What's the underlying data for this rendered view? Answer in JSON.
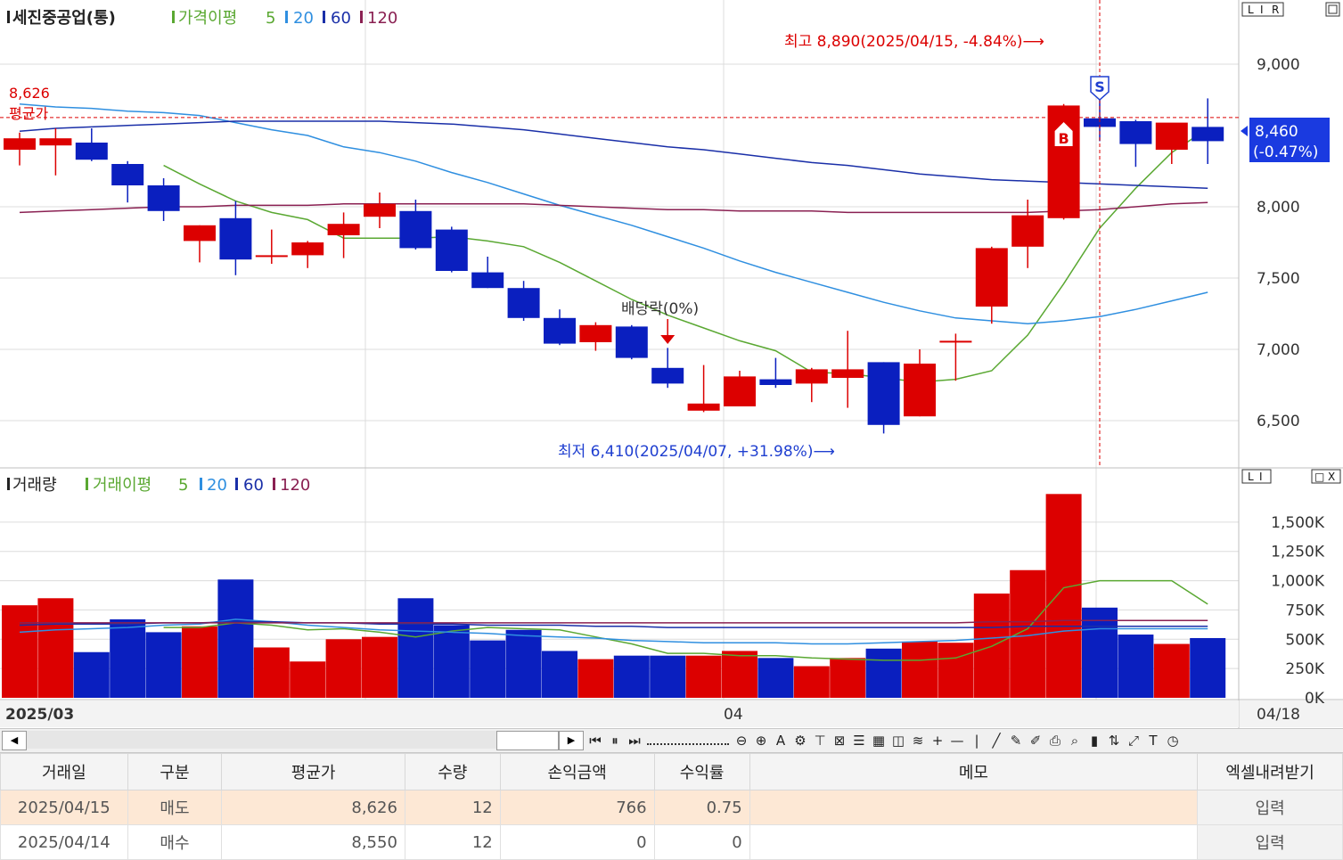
{
  "header": {
    "stock": "세진중공업(통)",
    "price_ma_label": "가격이평",
    "ma_periods": [
      "5",
      "20",
      "60",
      "120"
    ]
  },
  "volume_header": {
    "title": "거래량",
    "ma_label": "거래이평",
    "ma_periods": [
      "5",
      "20",
      "60",
      "120"
    ]
  },
  "panel_buttons": {
    "top": [
      "L",
      "I",
      "R"
    ],
    "bottom": [
      "L",
      "I"
    ],
    "win": [
      "□",
      "X"
    ]
  },
  "annotations": {
    "high": "최고 8,890(2025/04/15, -4.84%)⟶",
    "low": "최저 6,410(2025/04/07, +31.98%)⟶",
    "ex_dividend": "배당락(0%)",
    "avg_price_value": "8,626",
    "avg_price_label": "평균가",
    "buy_marker": "B",
    "sell_marker": "S",
    "current_price": "8,460",
    "current_change": "(-0.47%)"
  },
  "x_axis": {
    "left": "2025/03",
    "mid": "04",
    "right": "04/18"
  },
  "chart_data": [
    {
      "type": "candlestick",
      "ylim": [
        6200,
        9400
      ],
      "y_ticks": [
        6500,
        7000,
        7500,
        8000,
        9000
      ],
      "y_tick_labels": [
        "6,500",
        "7,000",
        "7,500",
        "8,000",
        "9,000"
      ],
      "candles": [
        {
          "o": 8400,
          "h": 8520,
          "l": 8290,
          "c": 8480
        },
        {
          "o": 8430,
          "h": 8550,
          "l": 8220,
          "c": 8480
        },
        {
          "o": 8450,
          "h": 8550,
          "l": 8320,
          "c": 8330
        },
        {
          "o": 8300,
          "h": 8320,
          "l": 8030,
          "c": 8150
        },
        {
          "o": 8150,
          "h": 8200,
          "l": 7900,
          "c": 7970
        },
        {
          "o": 7760,
          "h": 7870,
          "l": 7610,
          "c": 7870
        },
        {
          "o": 7920,
          "h": 8040,
          "l": 7520,
          "c": 7630
        },
        {
          "o": 7660,
          "h": 7840,
          "l": 7600,
          "c": 7660
        },
        {
          "o": 7660,
          "h": 7760,
          "l": 7570,
          "c": 7750
        },
        {
          "o": 7800,
          "h": 7960,
          "l": 7640,
          "c": 7880
        },
        {
          "o": 7930,
          "h": 8100,
          "l": 7850,
          "c": 8020
        },
        {
          "o": 7970,
          "h": 8050,
          "l": 7700,
          "c": 7710
        },
        {
          "o": 7840,
          "h": 7860,
          "l": 7540,
          "c": 7550
        },
        {
          "o": 7540,
          "h": 7650,
          "l": 7430,
          "c": 7430
        },
        {
          "o": 7430,
          "h": 7480,
          "l": 7200,
          "c": 7220
        },
        {
          "o": 7220,
          "h": 7280,
          "l": 7030,
          "c": 7040
        },
        {
          "o": 7050,
          "h": 7190,
          "l": 6990,
          "c": 7170
        },
        {
          "o": 7160,
          "h": 7170,
          "l": 6930,
          "c": 6940
        },
        {
          "o": 6870,
          "h": 7010,
          "l": 6730,
          "c": 6760
        },
        {
          "o": 6570,
          "h": 6890,
          "l": 6560,
          "c": 6620
        },
        {
          "o": 6600,
          "h": 6850,
          "l": 6600,
          "c": 6810
        },
        {
          "o": 6790,
          "h": 6940,
          "l": 6730,
          "c": 6750
        },
        {
          "o": 6760,
          "h": 6870,
          "l": 6630,
          "c": 6860
        },
        {
          "o": 6800,
          "h": 7130,
          "l": 6590,
          "c": 6860
        },
        {
          "o": 6910,
          "h": 6910,
          "l": 6410,
          "c": 6470
        },
        {
          "o": 6530,
          "h": 7000,
          "l": 6530,
          "c": 6900
        },
        {
          "o": 7060,
          "h": 7110,
          "l": 6780,
          "c": 7060
        },
        {
          "o": 7300,
          "h": 7720,
          "l": 7180,
          "c": 7710
        },
        {
          "o": 7720,
          "h": 8050,
          "l": 7570,
          "c": 7940
        },
        {
          "o": 7920,
          "h": 8720,
          "l": 7910,
          "c": 8710
        },
        {
          "o": 8620,
          "h": 8890,
          "l": 8460,
          "c": 8560
        },
        {
          "o": 8600,
          "h": 8610,
          "l": 8280,
          "c": 8440
        },
        {
          "o": 8400,
          "h": 8580,
          "l": 8300,
          "c": 8590
        },
        {
          "o": 8560,
          "h": 8760,
          "l": 8300,
          "c": 8460
        }
      ],
      "ma_series": [
        {
          "name": "5",
          "color": "#5aa832",
          "values": [
            null,
            null,
            null,
            null,
            8290,
            8160,
            8040,
            7960,
            7910,
            7780,
            7780,
            7780,
            7790,
            7760,
            7720,
            7610,
            7480,
            7350,
            7240,
            7150,
            7060,
            6990,
            6840,
            6830,
            6800,
            6770,
            6790,
            6850,
            7100,
            7460,
            7850,
            8130,
            8380,
            8550
          ]
        },
        {
          "name": "20",
          "color": "#2f8fe0",
          "values": [
            8720,
            8700,
            8690,
            8670,
            8660,
            8640,
            8590,
            8540,
            8500,
            8420,
            8380,
            8320,
            8240,
            8170,
            8090,
            8010,
            7940,
            7870,
            7790,
            7710,
            7620,
            7540,
            7470,
            7400,
            7330,
            7270,
            7220,
            7200,
            7180,
            7200,
            7230,
            7280,
            7340,
            7400
          ]
        },
        {
          "name": "60",
          "color": "#1a2fa8",
          "values": [
            8530,
            8550,
            8560,
            8570,
            8580,
            8590,
            8600,
            8600,
            8600,
            8600,
            8600,
            8590,
            8580,
            8560,
            8540,
            8510,
            8480,
            8450,
            8420,
            8400,
            8370,
            8340,
            8310,
            8290,
            8260,
            8230,
            8210,
            8190,
            8180,
            8170,
            8160,
            8150,
            8140,
            8130
          ]
        },
        {
          "name": "120",
          "color": "#8a2052",
          "values": [
            7960,
            7970,
            7980,
            7990,
            8000,
            8000,
            8010,
            8010,
            8010,
            8020,
            8020,
            8020,
            8020,
            8020,
            8020,
            8010,
            8000,
            7990,
            7980,
            7980,
            7970,
            7970,
            7970,
            7960,
            7960,
            7960,
            7960,
            7960,
            7960,
            7970,
            7980,
            8000,
            8020,
            8030
          ]
        }
      ]
    },
    {
      "type": "bar",
      "ylim": [
        0,
        1750000
      ],
      "y_ticks": [
        0,
        250000,
        500000,
        750000,
        1000000,
        1250000,
        1500000
      ],
      "y_tick_labels": [
        "0K",
        "250K",
        "500K",
        "750K",
        "1,000K",
        "1,250K",
        "1,500K"
      ],
      "values": [
        790000,
        850000,
        390000,
        670000,
        560000,
        610000,
        1010000,
        430000,
        310000,
        500000,
        520000,
        850000,
        620000,
        490000,
        580000,
        400000,
        330000,
        360000,
        360000,
        360000,
        400000,
        340000,
        270000,
        340000,
        420000,
        480000,
        470000,
        890000,
        1090000,
        1740000,
        770000,
        540000,
        460000,
        510000
      ],
      "ma_series": [
        {
          "name": "5",
          "color": "#5aa832",
          "values": [
            null,
            null,
            null,
            null,
            600000,
            600000,
            640000,
            620000,
            580000,
            590000,
            560000,
            520000,
            570000,
            600000,
            590000,
            580000,
            520000,
            460000,
            380000,
            380000,
            360000,
            360000,
            340000,
            330000,
            320000,
            320000,
            340000,
            440000,
            590000,
            940000,
            1000000,
            1000000,
            1000000,
            800000
          ]
        },
        {
          "name": "20",
          "color": "#2f8fe0",
          "values": [
            560000,
            580000,
            590000,
            600000,
            620000,
            630000,
            670000,
            650000,
            620000,
            600000,
            580000,
            570000,
            560000,
            550000,
            530000,
            520000,
            510000,
            490000,
            480000,
            470000,
            470000,
            470000,
            460000,
            460000,
            470000,
            480000,
            490000,
            510000,
            530000,
            570000,
            590000,
            590000,
            590000,
            590000
          ]
        },
        {
          "name": "60",
          "color": "#1a2fa8",
          "values": [
            620000,
            630000,
            630000,
            630000,
            640000,
            640000,
            650000,
            650000,
            640000,
            640000,
            630000,
            630000,
            630000,
            620000,
            620000,
            620000,
            610000,
            610000,
            600000,
            600000,
            600000,
            600000,
            600000,
            600000,
            600000,
            600000,
            600000,
            600000,
            610000,
            610000,
            610000,
            610000,
            610000,
            610000
          ]
        },
        {
          "name": "120",
          "color": "#8a2052",
          "values": [
            640000,
            640000,
            640000,
            640000,
            640000,
            640000,
            640000,
            640000,
            640000,
            640000,
            640000,
            640000,
            640000,
            640000,
            640000,
            640000,
            640000,
            640000,
            640000,
            640000,
            640000,
            640000,
            640000,
            640000,
            640000,
            640000,
            640000,
            650000,
            650000,
            660000,
            660000,
            660000,
            660000,
            660000
          ]
        }
      ]
    }
  ],
  "colors": {
    "up": "#dc0000",
    "down": "#0a1fbf",
    "grid": "#dcdcdc",
    "annot": "#dc0000",
    "low_annot": "#1f3fd0",
    "current_bg": "#1a3ae0"
  },
  "toolbar_icons": [
    "first-icon",
    "pause-icon",
    "last-icon",
    "zoom-slider",
    "zoom-out-icon",
    "zoom-in-icon",
    "text-a-icon",
    "settings-icon",
    "indicator-icon",
    "crosshair-icon",
    "list-icon",
    "table-icon",
    "chart-icon",
    "wave-icon",
    "plus-icon",
    "minus-icon",
    "vline-icon",
    "trendline-icon",
    "tools-icon",
    "pencil-icon",
    "print-icon",
    "search-icon",
    "bar-icon",
    "updown-icon",
    "expand-icon",
    "text-icon",
    "clock-icon"
  ],
  "trades": {
    "headers": [
      "거래일",
      "구분",
      "평균가",
      "수량",
      "손익금액",
      "수익률",
      "메모",
      "엑셀내려받기"
    ],
    "rows": [
      {
        "date": "2025/04/15",
        "type": "매도",
        "avg": "8,626",
        "qty": "12",
        "pnl": "766",
        "rate": "0.75",
        "memo": "",
        "btn": "입력"
      },
      {
        "date": "2025/04/14",
        "type": "매수",
        "avg": "8,550",
        "qty": "12",
        "pnl": "0",
        "rate": "0",
        "memo": "",
        "btn": "입력"
      }
    ]
  }
}
